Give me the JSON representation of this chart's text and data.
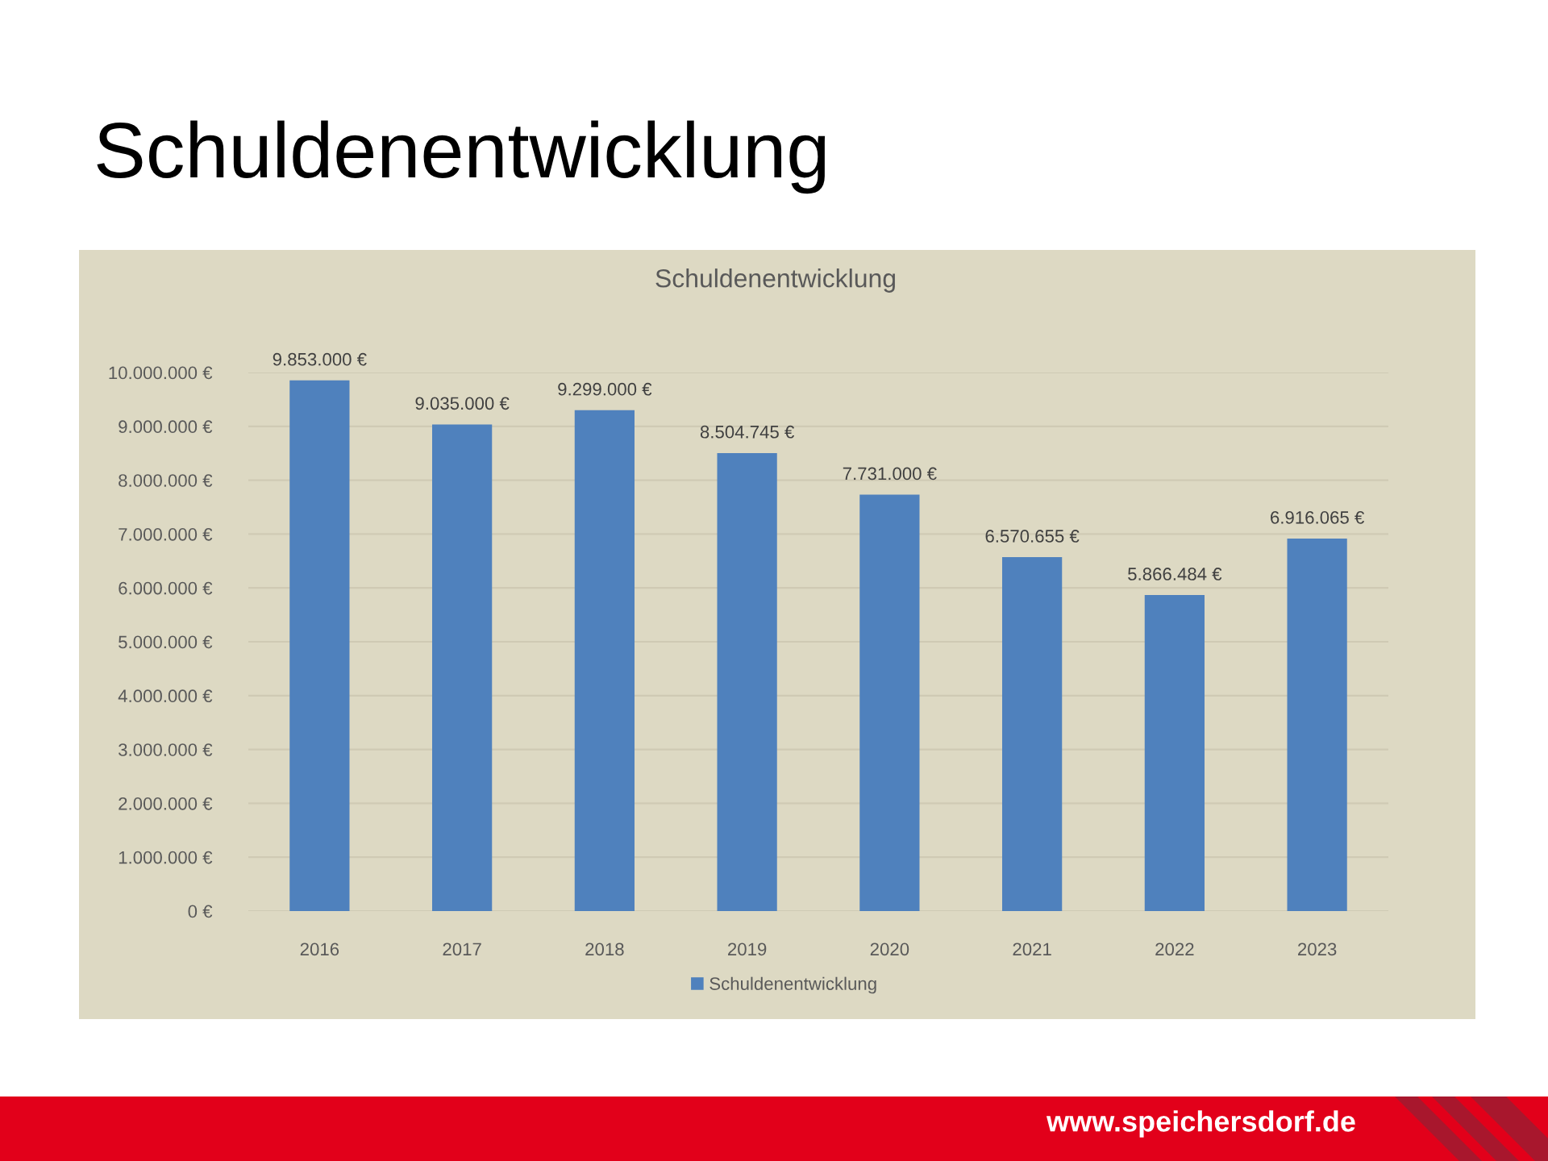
{
  "chart_data": {
    "type": "bar",
    "title": "Schuldenentwicklung",
    "subtitle": "Schuldenentwicklung",
    "categories": [
      "2016",
      "2017",
      "2018",
      "2019",
      "2020",
      "2021",
      "2022",
      "2023"
    ],
    "series": [
      {
        "name": "Schuldenentwicklung",
        "color": "#4f81bd",
        "values": [
          9853000,
          9035000,
          9299000,
          8504745,
          7731000,
          6570655,
          5866484,
          6916065
        ],
        "value_labels": [
          "9.853.000 €",
          "9.035.000 €",
          "9.299.000 €",
          "8.504.745 €",
          "7.731.000 €",
          "6.570.655 €",
          "5.866.484 €",
          "6.916.065 €"
        ]
      }
    ],
    "ylim": [
      0,
      10000000
    ],
    "yticks": [
      {
        "value": 0,
        "label": "0 €"
      },
      {
        "value": 1000000,
        "label": "1.000.000 €"
      },
      {
        "value": 2000000,
        "label": "2.000.000 €"
      },
      {
        "value": 3000000,
        "label": "3.000.000 €"
      },
      {
        "value": 4000000,
        "label": "4.000.000 €"
      },
      {
        "value": 5000000,
        "label": "5.000.000 €"
      },
      {
        "value": 6000000,
        "label": "6.000.000 €"
      },
      {
        "value": 7000000,
        "label": "7.000.000 €"
      },
      {
        "value": 8000000,
        "label": "8.000.000 €"
      },
      {
        "value": 9000000,
        "label": "9.000.000 €"
      },
      {
        "value": 10000000,
        "label": "10.000.000 €"
      }
    ],
    "grid": "y",
    "legend": "bottom",
    "annotations": [
      "www.speichersdorf.de"
    ]
  }
}
